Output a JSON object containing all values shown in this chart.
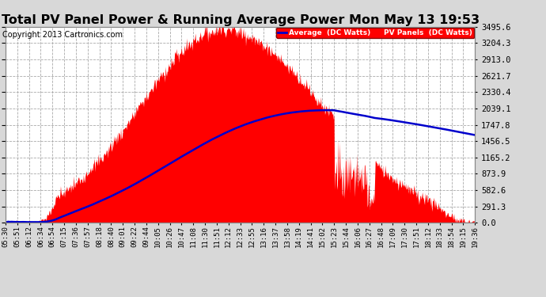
{
  "title": "Total PV Panel Power & Running Average Power Mon May 13 19:53",
  "copyright": "Copyright 2013 Cartronics.com",
  "ylabel_values": [
    0.0,
    291.3,
    582.6,
    873.9,
    1165.2,
    1456.5,
    1747.8,
    2039.1,
    2330.4,
    2621.7,
    2913.0,
    3204.3,
    3495.6
  ],
  "ymax": 3495.6,
  "legend_avg_label": "Average  (DC Watts)",
  "legend_pv_label": "PV Panels  (DC Watts)",
  "bg_color": "#d8d8d8",
  "plot_bg_color": "#ffffff",
  "fill_color": "#ff0000",
  "avg_line_color": "#0000cc",
  "grid_color": "#aaaaaa",
  "title_fontsize": 11.5,
  "copyright_fontsize": 7,
  "tick_fontsize": 6.5,
  "ytick_fontsize": 7.5,
  "x_tick_labels": [
    "05:30",
    "05:51",
    "06:12",
    "06:34",
    "06:54",
    "07:15",
    "07:36",
    "07:57",
    "08:18",
    "08:40",
    "09:01",
    "09:22",
    "09:44",
    "10:05",
    "10:26",
    "10:47",
    "11:08",
    "11:30",
    "11:51",
    "12:12",
    "12:33",
    "12:55",
    "13:16",
    "13:37",
    "13:58",
    "14:19",
    "14:41",
    "15:02",
    "15:23",
    "15:44",
    "16:06",
    "16:27",
    "16:48",
    "17:09",
    "17:30",
    "17:51",
    "18:12",
    "18:33",
    "18:54",
    "19:15",
    "19:36"
  ]
}
